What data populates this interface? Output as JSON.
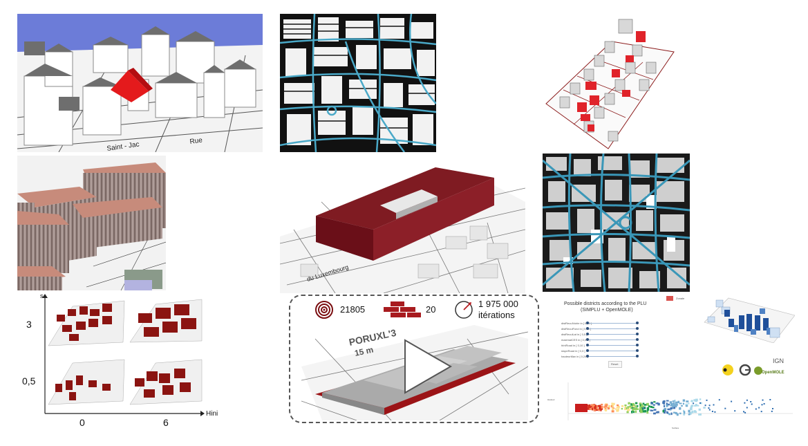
{
  "panels": {
    "building_3d": {
      "road_label": "Rue",
      "street_label": "Saint - Jac"
    },
    "street_network_a": {},
    "red_parcels": {},
    "textured_blocks": {},
    "massive_block": {
      "road_label": "du Luxembourg"
    },
    "street_network_b": {},
    "grid_matrix": {
      "y_axis": "s",
      "x_axis": "Hini",
      "y_ticks": [
        "3",
        "0,5"
      ],
      "x_ticks": [
        "0",
        "6"
      ]
    },
    "video_panel": {
      "stats": [
        {
          "icon": "target-icon",
          "value": "21805"
        },
        {
          "icon": "bricks-icon",
          "value": "20"
        },
        {
          "icon": "gauge-icon",
          "value": "1 975 000",
          "value2": "itérations"
        }
      ],
      "map_text_1": "PORUXL'3",
      "map_text_2": "15 m"
    },
    "app_panel": {
      "title_line1": "Possible districts according to the PLU",
      "title_line2": "(SIMPLU + OpenMOLE)",
      "top_label": "Zonale",
      "reset_label": "Reset",
      "slider_labels": [
        "distReculVoirie in [ 0,10 ]",
        "distReculFond in [ 0,10 ]",
        "distReculLat in [ 0,5 ]",
        "maximalCES in [ 0,0.5 ]",
        "hIniRoad in [ 0,10 ]",
        "slopeRoad in [ 0,3 ]",
        "hauteurMax in [ 0,24 ]"
      ],
      "logo_right": "IGN",
      "logo_openmole": "OpenMOLE",
      "scatter_x_label": "Surface",
      "scatter_y_label": "Hauteur"
    }
  }
}
